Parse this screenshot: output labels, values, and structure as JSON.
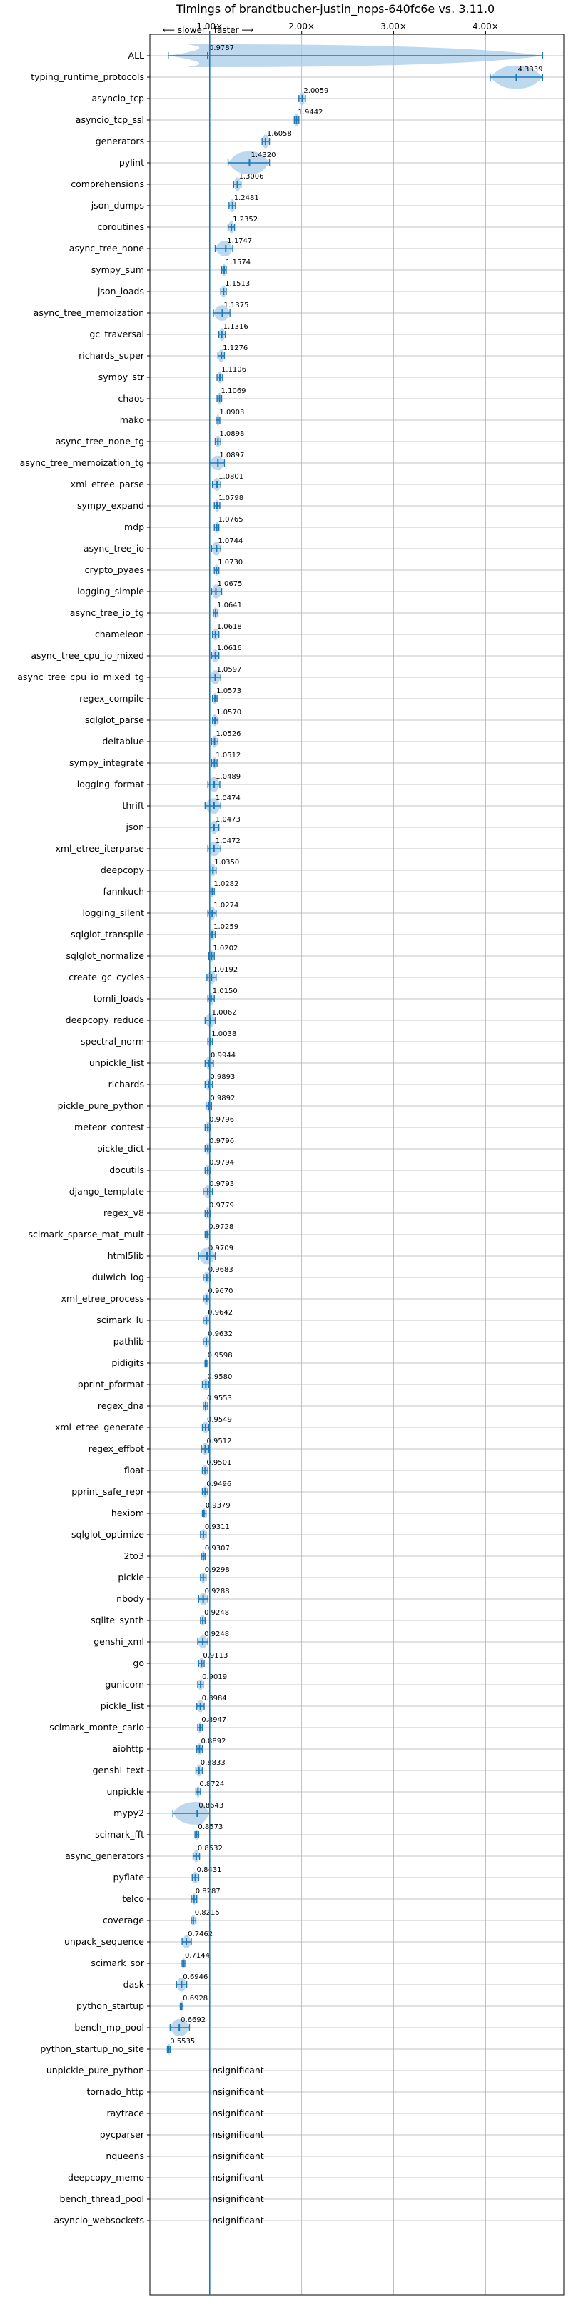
{
  "chart_data": {
    "type": "violin",
    "title": "Timings of brandtbucher-justin_nops-640fc6e vs. 3.11.0",
    "direction_note_left": "⟵ slower",
    "direction_note_right": "faster ⟶",
    "x_ticks": [
      1.0,
      2.0,
      3.0,
      4.0
    ],
    "x_tick_labels": [
      "1.00×",
      "2.00×",
      "3.00×",
      "4.00×"
    ],
    "xlim": [
      0.35,
      4.85
    ],
    "reference_line": 1.0,
    "grid": true,
    "colors": {
      "violin": "#a8cbe8",
      "marker": "#1f77b4",
      "reference": "#1f77b4"
    },
    "benchmarks": [
      {
        "name": "ALL",
        "value": 0.9787,
        "label": "0.9787",
        "min": 0.55,
        "max": 4.62,
        "width": 0.25
      },
      {
        "name": "typing_runtime_protocols",
        "value": 4.3339,
        "label": "4.3339",
        "min": 4.05,
        "max": 4.62,
        "width": 0.22
      },
      {
        "name": "asyncio_tcp",
        "value": 2.0059,
        "label": "2.0059",
        "min": 1.97,
        "max": 2.04,
        "width": 0.05
      },
      {
        "name": "asyncio_tcp_ssl",
        "value": 1.9442,
        "label": "1.9442",
        "min": 1.92,
        "max": 1.97,
        "width": 0.04
      },
      {
        "name": "generators",
        "value": 1.6058,
        "label": "1.6058",
        "min": 1.57,
        "max": 1.65,
        "width": 0.06
      },
      {
        "name": "pylint",
        "value": 1.432,
        "label": "1.4320",
        "min": 1.2,
        "max": 1.65,
        "width": 0.2
      },
      {
        "name": "comprehensions",
        "value": 1.3006,
        "label": "1.3006",
        "min": 1.26,
        "max": 1.34,
        "width": 0.06
      },
      {
        "name": "json_dumps",
        "value": 1.2481,
        "label": "1.2481",
        "min": 1.21,
        "max": 1.28,
        "width": 0.05
      },
      {
        "name": "coroutines",
        "value": 1.2352,
        "label": "1.2352",
        "min": 1.2,
        "max": 1.27,
        "width": 0.04
      },
      {
        "name": "async_tree_none",
        "value": 1.1747,
        "label": "1.1747",
        "min": 1.06,
        "max": 1.25,
        "width": 0.08
      },
      {
        "name": "sympy_sum",
        "value": 1.1574,
        "label": "1.1574",
        "min": 1.13,
        "max": 1.18,
        "width": 0.04
      },
      {
        "name": "json_loads",
        "value": 1.1513,
        "label": "1.1513",
        "min": 1.12,
        "max": 1.18,
        "width": 0.04
      },
      {
        "name": "async_tree_memoization",
        "value": 1.1375,
        "label": "1.1375",
        "min": 1.04,
        "max": 1.22,
        "width": 0.08
      },
      {
        "name": "gc_traversal",
        "value": 1.1316,
        "label": "1.1316",
        "min": 1.1,
        "max": 1.17,
        "width": 0.05
      },
      {
        "name": "richards_super",
        "value": 1.1276,
        "label": "1.1276",
        "min": 1.09,
        "max": 1.16,
        "width": 0.05
      },
      {
        "name": "sympy_str",
        "value": 1.1106,
        "label": "1.1106",
        "min": 1.08,
        "max": 1.14,
        "width": 0.04
      },
      {
        "name": "chaos",
        "value": 1.1069,
        "label": "1.1069",
        "min": 1.08,
        "max": 1.13,
        "width": 0.04
      },
      {
        "name": "mako",
        "value": 1.0903,
        "label": "1.0903",
        "min": 1.07,
        "max": 1.11,
        "width": 0.03
      },
      {
        "name": "async_tree_none_tg",
        "value": 1.0898,
        "label": "1.0898",
        "min": 1.06,
        "max": 1.12,
        "width": 0.04
      },
      {
        "name": "async_tree_memoization_tg",
        "value": 1.0897,
        "label": "1.0897",
        "min": 1.0,
        "max": 1.16,
        "width": 0.07
      },
      {
        "name": "xml_etree_parse",
        "value": 1.0801,
        "label": "1.0801",
        "min": 1.03,
        "max": 1.12,
        "width": 0.05
      },
      {
        "name": "sympy_expand",
        "value": 1.0798,
        "label": "1.0798",
        "min": 1.05,
        "max": 1.11,
        "width": 0.04
      },
      {
        "name": "mdp",
        "value": 1.0765,
        "label": "1.0765",
        "min": 1.05,
        "max": 1.1,
        "width": 0.03
      },
      {
        "name": "async_tree_io",
        "value": 1.0744,
        "label": "1.0744",
        "min": 1.02,
        "max": 1.12,
        "width": 0.06
      },
      {
        "name": "crypto_pyaes",
        "value": 1.073,
        "label": "1.0730",
        "min": 1.05,
        "max": 1.1,
        "width": 0.03
      },
      {
        "name": "logging_simple",
        "value": 1.0675,
        "label": "1.0675",
        "min": 1.02,
        "max": 1.13,
        "width": 0.06
      },
      {
        "name": "async_tree_io_tg",
        "value": 1.0641,
        "label": "1.0641",
        "min": 1.04,
        "max": 1.09,
        "width": 0.03
      },
      {
        "name": "chameleon",
        "value": 1.0618,
        "label": "1.0618",
        "min": 1.03,
        "max": 1.1,
        "width": 0.04
      },
      {
        "name": "async_tree_cpu_io_mixed",
        "value": 1.0616,
        "label": "1.0616",
        "min": 1.02,
        "max": 1.1,
        "width": 0.05
      },
      {
        "name": "async_tree_cpu_io_mixed_tg",
        "value": 1.0597,
        "label": "1.0597",
        "min": 1.0,
        "max": 1.12,
        "width": 0.06
      },
      {
        "name": "regex_compile",
        "value": 1.0573,
        "label": "1.0573",
        "min": 1.03,
        "max": 1.08,
        "width": 0.03
      },
      {
        "name": "sqlglot_parse",
        "value": 1.057,
        "label": "1.0570",
        "min": 1.03,
        "max": 1.09,
        "width": 0.04
      },
      {
        "name": "deltablue",
        "value": 1.0526,
        "label": "1.0526",
        "min": 1.02,
        "max": 1.09,
        "width": 0.04
      },
      {
        "name": "sympy_integrate",
        "value": 1.0512,
        "label": "1.0512",
        "min": 1.02,
        "max": 1.08,
        "width": 0.03
      },
      {
        "name": "logging_format",
        "value": 1.0489,
        "label": "1.0489",
        "min": 0.98,
        "max": 1.11,
        "width": 0.07
      },
      {
        "name": "thrift",
        "value": 1.0474,
        "label": "1.0474",
        "min": 0.95,
        "max": 1.12,
        "width": 0.08
      },
      {
        "name": "json",
        "value": 1.0473,
        "label": "1.0473",
        "min": 1.0,
        "max": 1.1,
        "width": 0.05
      },
      {
        "name": "xml_etree_iterparse",
        "value": 1.0472,
        "label": "1.0472",
        "min": 0.98,
        "max": 1.12,
        "width": 0.07
      },
      {
        "name": "deepcopy",
        "value": 1.035,
        "label": "1.0350",
        "min": 1.0,
        "max": 1.07,
        "width": 0.04
      },
      {
        "name": "fannkuch",
        "value": 1.0282,
        "label": "1.0282",
        "min": 1.0,
        "max": 1.05,
        "width": 0.03
      },
      {
        "name": "logging_silent",
        "value": 1.0274,
        "label": "1.0274",
        "min": 0.98,
        "max": 1.07,
        "width": 0.05
      },
      {
        "name": "sqlglot_transpile",
        "value": 1.0259,
        "label": "1.0259",
        "min": 1.0,
        "max": 1.06,
        "width": 0.03
      },
      {
        "name": "sqlglot_normalize",
        "value": 1.0202,
        "label": "1.0202",
        "min": 0.99,
        "max": 1.05,
        "width": 0.03
      },
      {
        "name": "create_gc_cycles",
        "value": 1.0192,
        "label": "1.0192",
        "min": 0.97,
        "max": 1.07,
        "width": 0.05
      },
      {
        "name": "tomli_loads",
        "value": 1.015,
        "label": "1.0150",
        "min": 0.98,
        "max": 1.05,
        "width": 0.04
      },
      {
        "name": "deepcopy_reduce",
        "value": 1.0062,
        "label": "1.0062",
        "min": 0.95,
        "max": 1.06,
        "width": 0.06
      },
      {
        "name": "spectral_norm",
        "value": 1.0038,
        "label": "1.0038",
        "min": 0.98,
        "max": 1.03,
        "width": 0.03
      },
      {
        "name": "unpickle_list",
        "value": 0.9944,
        "label": "0.9944",
        "min": 0.95,
        "max": 1.04,
        "width": 0.05
      },
      {
        "name": "richards",
        "value": 0.9893,
        "label": "0.9893",
        "min": 0.95,
        "max": 1.03,
        "width": 0.04
      },
      {
        "name": "pickle_pure_python",
        "value": 0.9892,
        "label": "0.9892",
        "min": 0.96,
        "max": 1.02,
        "width": 0.03
      },
      {
        "name": "meteor_contest",
        "value": 0.9796,
        "label": "0.9796",
        "min": 0.95,
        "max": 1.01,
        "width": 0.03
      },
      {
        "name": "pickle_dict",
        "value": 0.9796,
        "label": "0.9796",
        "min": 0.95,
        "max": 1.01,
        "width": 0.03
      },
      {
        "name": "docutils",
        "value": 0.9794,
        "label": "0.9794",
        "min": 0.95,
        "max": 1.01,
        "width": 0.03
      },
      {
        "name": "django_template",
        "value": 0.9793,
        "label": "0.9793",
        "min": 0.93,
        "max": 1.03,
        "width": 0.05
      },
      {
        "name": "regex_v8",
        "value": 0.9779,
        "label": "0.9779",
        "min": 0.95,
        "max": 1.01,
        "width": 0.03
      },
      {
        "name": "scimark_sparse_mat_mult",
        "value": 0.9728,
        "label": "0.9728",
        "min": 0.95,
        "max": 1.0,
        "width": 0.03
      },
      {
        "name": "html5lib",
        "value": 0.9709,
        "label": "0.9709",
        "min": 0.88,
        "max": 1.06,
        "width": 0.09
      },
      {
        "name": "dulwich_log",
        "value": 0.9683,
        "label": "0.9683",
        "min": 0.93,
        "max": 1.01,
        "width": 0.04
      },
      {
        "name": "xml_etree_process",
        "value": 0.967,
        "label": "0.9670",
        "min": 0.93,
        "max": 1.0,
        "width": 0.04
      },
      {
        "name": "scimark_lu",
        "value": 0.9642,
        "label": "0.9642",
        "min": 0.93,
        "max": 1.0,
        "width": 0.03
      },
      {
        "name": "pathlib",
        "value": 0.9632,
        "label": "0.9632",
        "min": 0.93,
        "max": 1.0,
        "width": 0.03
      },
      {
        "name": "pidigits",
        "value": 0.9598,
        "label": "0.9598",
        "min": 0.95,
        "max": 0.97,
        "width": 0.02
      },
      {
        "name": "pprint_pformat",
        "value": 0.958,
        "label": "0.9580",
        "min": 0.92,
        "max": 0.99,
        "width": 0.04
      },
      {
        "name": "regex_dna",
        "value": 0.9553,
        "label": "0.9553",
        "min": 0.93,
        "max": 0.98,
        "width": 0.03
      },
      {
        "name": "xml_etree_generate",
        "value": 0.9549,
        "label": "0.9549",
        "min": 0.92,
        "max": 0.99,
        "width": 0.04
      },
      {
        "name": "regex_effbot",
        "value": 0.9512,
        "label": "0.9512",
        "min": 0.91,
        "max": 0.99,
        "width": 0.04
      },
      {
        "name": "float",
        "value": 0.9501,
        "label": "0.9501",
        "min": 0.92,
        "max": 0.98,
        "width": 0.03
      },
      {
        "name": "pprint_safe_repr",
        "value": 0.9496,
        "label": "0.9496",
        "min": 0.92,
        "max": 0.98,
        "width": 0.03
      },
      {
        "name": "hexiom",
        "value": 0.9379,
        "label": "0.9379",
        "min": 0.92,
        "max": 0.96,
        "width": 0.02
      },
      {
        "name": "sqlglot_optimize",
        "value": 0.9311,
        "label": "0.9311",
        "min": 0.9,
        "max": 0.96,
        "width": 0.03
      },
      {
        "name": "2to3",
        "value": 0.9307,
        "label": "0.9307",
        "min": 0.91,
        "max": 0.95,
        "width": 0.02
      },
      {
        "name": "pickle",
        "value": 0.9298,
        "label": "0.9298",
        "min": 0.9,
        "max": 0.96,
        "width": 0.03
      },
      {
        "name": "nbody",
        "value": 0.9288,
        "label": "0.9288",
        "min": 0.88,
        "max": 0.98,
        "width": 0.05
      },
      {
        "name": "sqlite_synth",
        "value": 0.9248,
        "label": "0.9248",
        "min": 0.9,
        "max": 0.95,
        "width": 0.03
      },
      {
        "name": "genshi_xml",
        "value": 0.9248,
        "label": "0.9248",
        "min": 0.87,
        "max": 0.98,
        "width": 0.05
      },
      {
        "name": "go",
        "value": 0.9113,
        "label": "0.9113",
        "min": 0.88,
        "max": 0.94,
        "width": 0.03
      },
      {
        "name": "gunicorn",
        "value": 0.9019,
        "label": "0.9019",
        "min": 0.87,
        "max": 0.93,
        "width": 0.03
      },
      {
        "name": "pickle_list",
        "value": 0.8984,
        "label": "0.8984",
        "min": 0.86,
        "max": 0.94,
        "width": 0.04
      },
      {
        "name": "scimark_monte_carlo",
        "value": 0.8947,
        "label": "0.8947",
        "min": 0.87,
        "max": 0.92,
        "width": 0.03
      },
      {
        "name": "aiohttp",
        "value": 0.8892,
        "label": "0.8892",
        "min": 0.86,
        "max": 0.92,
        "width": 0.03
      },
      {
        "name": "genshi_text",
        "value": 0.8833,
        "label": "0.8833",
        "min": 0.85,
        "max": 0.92,
        "width": 0.04
      },
      {
        "name": "unpickle",
        "value": 0.8724,
        "label": "0.8724",
        "min": 0.85,
        "max": 0.9,
        "width": 0.03
      },
      {
        "name": "mypy2",
        "value": 0.8643,
        "label": "0.8643",
        "min": 0.6,
        "max": 1.0,
        "width": 0.2
      },
      {
        "name": "scimark_fft",
        "value": 0.8573,
        "label": "0.8573",
        "min": 0.84,
        "max": 0.88,
        "width": 0.02
      },
      {
        "name": "async_generators",
        "value": 0.8532,
        "label": "0.8532",
        "min": 0.82,
        "max": 0.89,
        "width": 0.04
      },
      {
        "name": "pyflate",
        "value": 0.8431,
        "label": "0.8431",
        "min": 0.81,
        "max": 0.88,
        "width": 0.04
      },
      {
        "name": "telco",
        "value": 0.8287,
        "label": "0.8287",
        "min": 0.8,
        "max": 0.86,
        "width": 0.03
      },
      {
        "name": "coverage",
        "value": 0.8215,
        "label": "0.8215",
        "min": 0.8,
        "max": 0.85,
        "width": 0.03
      },
      {
        "name": "unpack_sequence",
        "value": 0.7462,
        "label": "0.7462",
        "min": 0.7,
        "max": 0.8,
        "width": 0.05
      },
      {
        "name": "scimark_sor",
        "value": 0.7144,
        "label": "0.7144",
        "min": 0.7,
        "max": 0.73,
        "width": 0.02
      },
      {
        "name": "dask",
        "value": 0.6946,
        "label": "0.6946",
        "min": 0.64,
        "max": 0.75,
        "width": 0.06
      },
      {
        "name": "python_startup",
        "value": 0.6928,
        "label": "0.6928",
        "min": 0.68,
        "max": 0.71,
        "width": 0.02
      },
      {
        "name": "bench_mp_pool",
        "value": 0.6692,
        "label": "0.6692",
        "min": 0.57,
        "max": 0.78,
        "width": 0.1
      },
      {
        "name": "python_startup_no_site",
        "value": 0.5535,
        "label": "0.5535",
        "min": 0.54,
        "max": 0.57,
        "width": 0.02
      },
      {
        "name": "unpickle_pure_python",
        "insignificant": true,
        "label": "insignificant"
      },
      {
        "name": "tornado_http",
        "insignificant": true,
        "label": "insignificant"
      },
      {
        "name": "raytrace",
        "insignificant": true,
        "label": "insignificant"
      },
      {
        "name": "pycparser",
        "insignificant": true,
        "label": "insignificant"
      },
      {
        "name": "nqueens",
        "insignificant": true,
        "label": "insignificant"
      },
      {
        "name": "deepcopy_memo",
        "insignificant": true,
        "label": "insignificant"
      },
      {
        "name": "bench_thread_pool",
        "insignificant": true,
        "label": "insignificant"
      },
      {
        "name": "asyncio_websockets",
        "insignificant": true,
        "label": "insignificant"
      }
    ]
  }
}
